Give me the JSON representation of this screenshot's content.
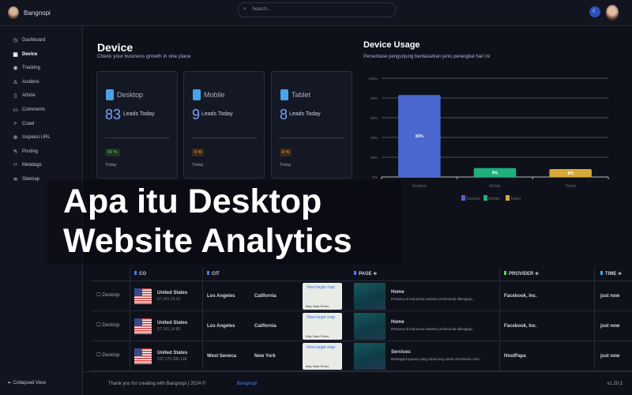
{
  "app": {
    "brand": "Bangnopi",
    "search_placeholder": "Search..."
  },
  "sidebar": {
    "items": [
      {
        "label": "Dashboard",
        "icon": "dashboard-icon",
        "glyph": "◷"
      },
      {
        "label": "Device",
        "icon": "device-icon",
        "glyph": "▣",
        "active": true
      },
      {
        "label": "Tracking",
        "icon": "location-icon",
        "glyph": "◉"
      },
      {
        "label": "Audiens",
        "icon": "user-icon",
        "glyph": "♙"
      },
      {
        "label": "Article",
        "icon": "file-icon",
        "glyph": "▯"
      },
      {
        "label": "Comments",
        "icon": "comment-icon",
        "glyph": "▭"
      },
      {
        "label": "Crawl",
        "icon": "search-icon",
        "glyph": "⌕"
      },
      {
        "label": "Inspeksi URL",
        "icon": "globe-icon",
        "glyph": "⊕"
      },
      {
        "label": "Posting",
        "icon": "edit-icon",
        "glyph": "✎"
      },
      {
        "label": "Metatags",
        "icon": "code-icon",
        "glyph": "‹›"
      },
      {
        "label": "Sitemap",
        "icon": "layers-icon",
        "glyph": "≋"
      }
    ],
    "collapse_label": "Collapsed View"
  },
  "device": {
    "title": "Device",
    "subtitle": "Check your business growth in one place",
    "cards": [
      {
        "name": "Desktop",
        "count": "83",
        "leads_label": "Leads Today",
        "badge": "83 %",
        "badge_color": "#5fd16a",
        "badge_bg": "#1f3322",
        "period": "Today"
      },
      {
        "name": "Mobile",
        "count": "9",
        "leads_label": "Leads Today",
        "badge": "9 %",
        "badge_color": "#f0a24a",
        "badge_bg": "#3a2a1a",
        "period": "Today"
      },
      {
        "name": "Tablet",
        "count": "8",
        "leads_label": "Leads Today",
        "badge": "8 %",
        "badge_color": "#f0a24a",
        "badge_bg": "#3a2a1a",
        "period": "Today"
      }
    ]
  },
  "usage": {
    "title": "Device Usage",
    "subtitle": "Persentase pengunjung berdasarkan jenis perangkat hari ini"
  },
  "chart_data": {
    "type": "bar",
    "categories": [
      "Desktop",
      "Mobile",
      "Tablet"
    ],
    "values": [
      83,
      9,
      8
    ],
    "data_labels": [
      "83%",
      "9%",
      "8%"
    ],
    "ylim": [
      0,
      100
    ],
    "yticks": [
      "0%",
      "20%",
      "40%",
      "60%",
      "80%",
      "100%"
    ],
    "grid": true,
    "legend": "bottom",
    "colors": [
      "#4a68d0",
      "#1fb07c",
      "#d6a93a"
    ],
    "series_legend": [
      "Desktop",
      "Mobile",
      "Tablet"
    ]
  },
  "table": {
    "headers": [
      {
        "label": "CO",
        "color": "#4a7cf0"
      },
      {
        "label": "CIT",
        "color": "#4a7cf0"
      },
      {
        "label": "PAGE ≑",
        "color": "#4a7cf0"
      },
      {
        "label": "PROVIDER ≑",
        "color": "#5fd16a"
      },
      {
        "label": "TIME ≑",
        "color": "#4aa3e8"
      }
    ],
    "rows": [
      {
        "device": "Desktop",
        "country": "United States",
        "ip": "57.141.14.13",
        "city": "Los Angeles",
        "region": "California",
        "map_text": "View larger map",
        "page": "Home",
        "page_desc": "Pertama di Indonesia website profesional dilengkap...",
        "provider": "Facebook, Inc.",
        "time": "just now"
      },
      {
        "device": "Desktop",
        "country": "United States",
        "ip": "57.141.14.83",
        "city": "Los Angeles",
        "region": "California",
        "map_text": "View larger map",
        "page": "Home",
        "page_desc": "Pertama di Indonesia website profesional dilengkap...",
        "provider": "Facebook, Inc.",
        "time": "just now"
      },
      {
        "device": "Desktop",
        "country": "United States",
        "ip": "107.175.185.148",
        "city": "West Seneca",
        "region": "New York",
        "map_text": "View larger map",
        "page": "Services",
        "page_desc": "Berbagai layanan yang dirancang untuk membantu And...",
        "provider": "HostPapa",
        "time": "just now"
      }
    ],
    "map_footer": "Map Data  Terms"
  },
  "footer": {
    "text": "Thank you for creating with Bangnopi  |  2024 ©",
    "link": "Bangnopi",
    "version": "v1.20.1"
  },
  "overlay": {
    "line1": "Apa itu Desktop",
    "line2": "Website Analytics"
  }
}
